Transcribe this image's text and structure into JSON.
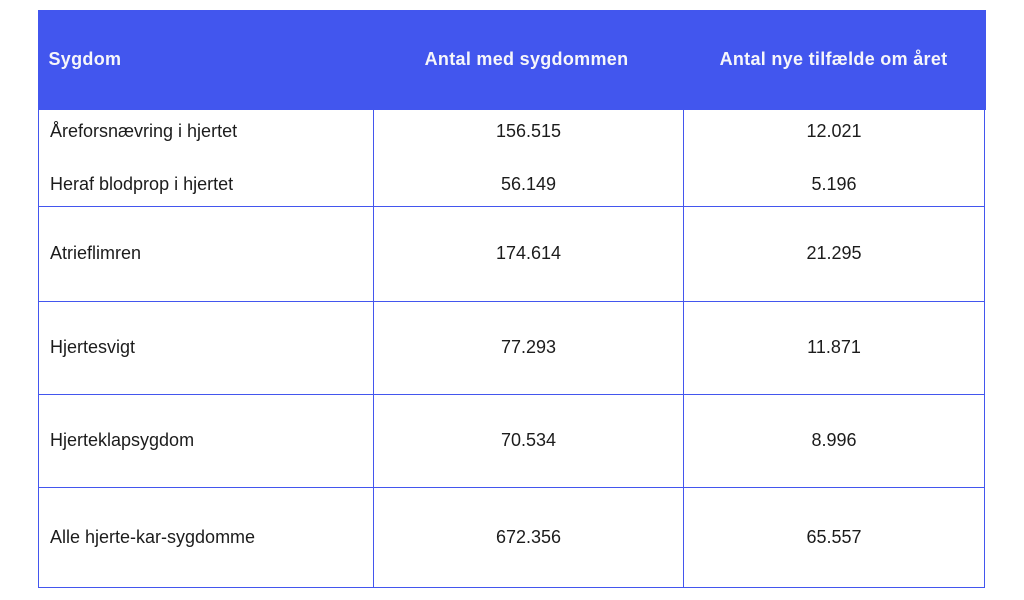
{
  "colors": {
    "header_background": "#4256ee",
    "header_text": "#f6f6fa",
    "border": "#4356ee",
    "body_text": "#1c1c1c",
    "page_background": "#ffffff"
  },
  "table": {
    "columns": [
      "Sygdom",
      "Antal med sygdommen",
      "Antal nye tilfælde om året"
    ],
    "rows": [
      {
        "lines": [
          {
            "sygdom": "Åreforsnævring i hjertet",
            "antal": "156.515",
            "nye": "12.021"
          },
          {
            "sygdom": "Heraf blodprop i hjertet",
            "antal": "56.149",
            "nye": "5.196"
          }
        ]
      },
      {
        "lines": [
          {
            "sygdom": "Atrieflimren",
            "antal": "174.614",
            "nye": "21.295"
          }
        ]
      },
      {
        "lines": [
          {
            "sygdom": "Hjertesvigt",
            "antal": "77.293",
            "nye": "11.871"
          }
        ]
      },
      {
        "lines": [
          {
            "sygdom": "Hjerteklapsygdom",
            "antal": "70.534",
            "nye": "8.996"
          }
        ]
      },
      {
        "lines": [
          {
            "sygdom": "Alle hjerte-kar-sygdomme",
            "antal": "672.356",
            "nye": "65.557"
          }
        ]
      }
    ]
  },
  "chart_data": {
    "type": "table",
    "columns": [
      "Sygdom",
      "Antal med sygdommen",
      "Antal nye tilfælde om året"
    ],
    "rows": [
      [
        "Åreforsnævring i hjertet",
        "156.515",
        "12.021"
      ],
      [
        "Heraf blodprop i hjertet",
        "56.149",
        "5.196"
      ],
      [
        "Atrieflimren",
        "174.614",
        "21.295"
      ],
      [
        "Hjertesvigt",
        "77.293",
        "11.871"
      ],
      [
        "Hjerteklapsygdom",
        "70.534",
        "8.996"
      ],
      [
        "Alle hjerte-kar-sygdomme",
        "672.356",
        "65.557"
      ]
    ]
  }
}
